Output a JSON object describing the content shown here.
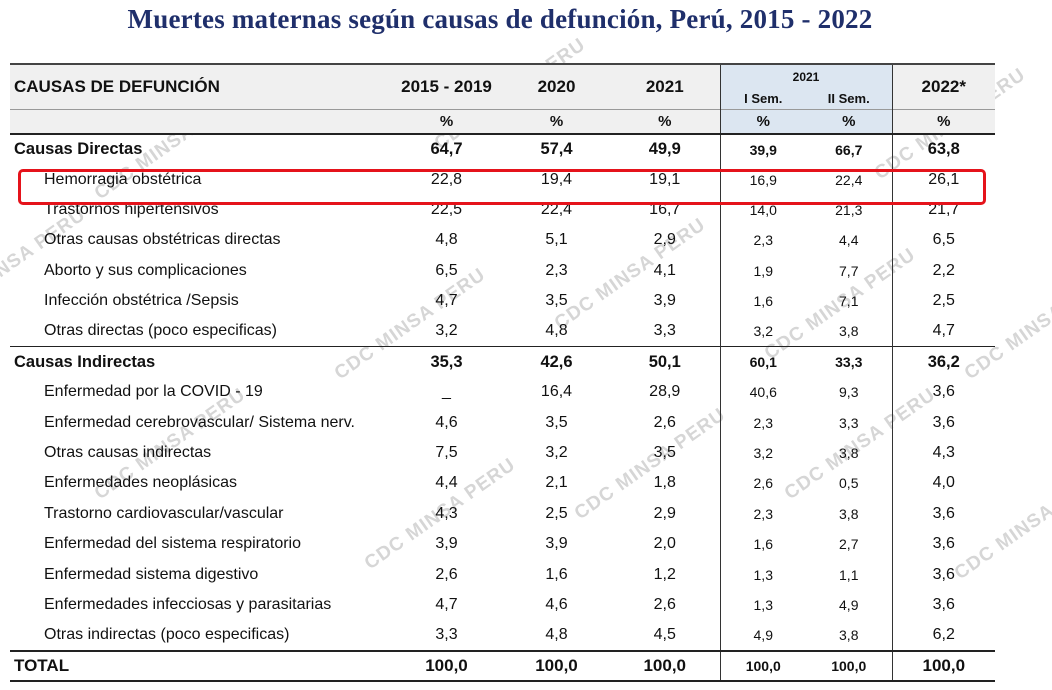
{
  "title": "Muertes maternas según causas de defunción, Perú, 2015 - 2022",
  "watermark": "CDC MINSA PERU",
  "header": {
    "cause_label": "CAUSAS DE DEFUNCIÓN",
    "periods": [
      "2015 - 2019",
      "2020",
      "2021"
    ],
    "group_2021": "2021",
    "semesters": [
      "I Sem.",
      "II Sem."
    ],
    "last_period": "2022*",
    "unit": "%"
  },
  "rows": [
    {
      "label": "Causas Directas",
      "values": [
        "64,7",
        "57,4",
        "49,9",
        "39,9",
        "66,7",
        "63,8"
      ]
    },
    {
      "label": "Hemorragia obstétrica",
      "values": [
        "22,8",
        "19,4",
        "19,1",
        "16,9",
        "22,4",
        "26,1"
      ]
    },
    {
      "label": "Trastornos hipertensivos",
      "values": [
        "22,5",
        "22,4",
        "16,7",
        "14,0",
        "21,3",
        "21,7"
      ]
    },
    {
      "label": "Otras causas obstétricas directas",
      "values": [
        "4,8",
        "5,1",
        "2,9",
        "2,3",
        "4,4",
        "6,5"
      ]
    },
    {
      "label": "Aborto y sus complicaciones",
      "values": [
        "6,5",
        "2,3",
        "4,1",
        "1,9",
        "7,7",
        "2,2"
      ]
    },
    {
      "label": "Infección obstétrica /Sepsis",
      "values": [
        "4,7",
        "3,5",
        "3,9",
        "1,6",
        "7,1",
        "2,5"
      ]
    },
    {
      "label": "Otras directas (poco especificas)",
      "values": [
        "3,2",
        "4,8",
        "3,3",
        "3,2",
        "3,8",
        "4,7"
      ]
    },
    {
      "label": "Causas Indirectas",
      "values": [
        "35,3",
        "42,6",
        "50,1",
        "60,1",
        "33,3",
        "36,2"
      ]
    },
    {
      "label": "Enfermedad por la COVID - 19",
      "values": [
        "_",
        "16,4",
        "28,9",
        "40,6",
        "9,3",
        "3,6"
      ]
    },
    {
      "label": "Enfermedad cerebrovascular/ Sistema nerv.",
      "values": [
        "4,6",
        "3,5",
        "2,6",
        "2,3",
        "3,3",
        "3,6"
      ]
    },
    {
      "label": "Otras causas indirectas",
      "values": [
        "7,5",
        "3,2",
        "3,5",
        "3,2",
        "3,8",
        "4,3"
      ]
    },
    {
      "label": "Enfermedades neoplásicas",
      "values": [
        "4,4",
        "2,1",
        "1,8",
        "2,6",
        "0,5",
        "4,0"
      ]
    },
    {
      "label": "Trastorno cardiovascular/vascular",
      "values": [
        "4,3",
        "2,5",
        "2,9",
        "2,3",
        "3,8",
        "3,6"
      ]
    },
    {
      "label": "Enfermedad del sistema respiratorio",
      "values": [
        "3,9",
        "3,9",
        "2,0",
        "1,6",
        "2,7",
        "3,6"
      ]
    },
    {
      "label": "Enfermedad sistema digestivo",
      "values": [
        "2,6",
        "1,6",
        "1,2",
        "1,3",
        "1,1",
        "3,6"
      ]
    },
    {
      "label": "Enfermedades infecciosas y parasitarias",
      "values": [
        "4,7",
        "4,6",
        "2,6",
        "1,3",
        "4,9",
        "3,6"
      ]
    },
    {
      "label": "Otras indirectas (poco especificas)",
      "values": [
        "3,3",
        "4,8",
        "4,5",
        "4,9",
        "3,8",
        "6,2"
      ]
    },
    {
      "label": "TOTAL",
      "values": [
        "100,0",
        "100,0",
        "100,0",
        "100,0",
        "100,0",
        "100,0"
      ]
    }
  ],
  "colors": {
    "title": "#1f2f6b",
    "highlight": "#e5131b",
    "semester_header_bg": "#dce6f1",
    "header_bg": "#f0f0f0"
  }
}
